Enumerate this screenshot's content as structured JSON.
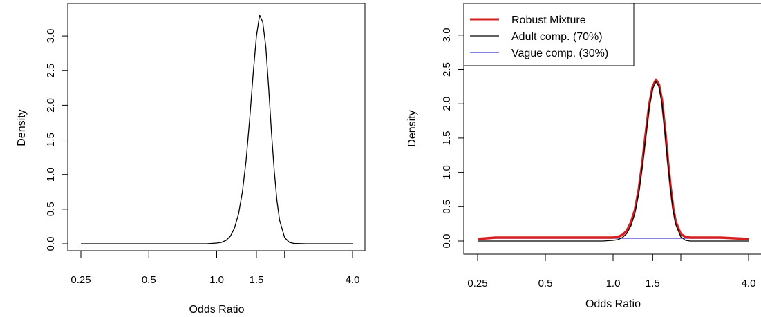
{
  "chart_data": [
    {
      "type": "line",
      "title": "",
      "xlabel": "Odds Ratio",
      "ylabel": "Density",
      "xscale": "log",
      "xlim": [
        0.25,
        4.0
      ],
      "ylim": [
        0,
        3.3
      ],
      "x_ticks": [
        0.25,
        0.5,
        1.0,
        1.5,
        2.0,
        4.0
      ],
      "x_tick_labels": [
        "0.25",
        "0.5",
        "1.0",
        "1.5",
        "",
        "4.0"
      ],
      "y_ticks": [
        0,
        0.5,
        1.0,
        1.5,
        2.0,
        2.5,
        3.0
      ],
      "y_tick_labels": [
        "0.0",
        "0.5",
        "1.0",
        "1.5",
        "2.0",
        "2.5",
        "3.0"
      ],
      "grid": false,
      "legend": null,
      "series": [
        {
          "color": "#000000",
          "x": [
            0.25,
            0.5,
            0.9,
            1.0,
            1.05,
            1.1,
            1.15,
            1.2,
            1.25,
            1.3,
            1.35,
            1.4,
            1.45,
            1.5,
            1.55,
            1.6,
            1.65,
            1.7,
            1.75,
            1.8,
            1.85,
            1.9,
            2.0,
            2.1,
            2.2,
            2.5,
            3.0,
            4.0
          ],
          "y": [
            0.0,
            0.0,
            0.0,
            0.01,
            0.02,
            0.05,
            0.11,
            0.23,
            0.43,
            0.75,
            1.2,
            1.8,
            2.45,
            3.0,
            3.3,
            3.2,
            2.85,
            2.25,
            1.6,
            1.05,
            0.62,
            0.34,
            0.09,
            0.02,
            0.005,
            0.0,
            0.0,
            0.0
          ]
        }
      ]
    },
    {
      "type": "line",
      "title": "",
      "xlabel": "Odds Ratio",
      "ylabel": "Density",
      "xscale": "log",
      "xlim": [
        0.25,
        4.0
      ],
      "ylim": [
        0,
        3.3
      ],
      "x_ticks": [
        0.25,
        0.5,
        1.0,
        1.5,
        2.0,
        4.0
      ],
      "x_tick_labels": [
        "0.25",
        "0.5",
        "1.0",
        "1.5",
        "",
        "4.0"
      ],
      "y_ticks": [
        0,
        0.5,
        1.0,
        1.5,
        2.0,
        2.5,
        3.0
      ],
      "y_tick_labels": [
        "0.0",
        "0.5",
        "1.0",
        "1.5",
        "2.0",
        "2.5",
        "3.0"
      ],
      "grid": false,
      "legend_position": "top-left",
      "series": [
        {
          "name": "Robust Mixture",
          "color": "#d62020",
          "x": [
            0.25,
            0.3,
            0.5,
            1.0,
            1.05,
            1.1,
            1.15,
            1.2,
            1.25,
            1.3,
            1.35,
            1.4,
            1.45,
            1.5,
            1.55,
            1.6,
            1.65,
            1.7,
            1.75,
            1.8,
            1.85,
            1.9,
            2.0,
            2.1,
            2.2,
            2.5,
            3.0,
            4.0
          ],
          "y": [
            0.03,
            0.05,
            0.05,
            0.05,
            0.06,
            0.09,
            0.15,
            0.27,
            0.45,
            0.75,
            1.15,
            1.6,
            2.0,
            2.25,
            2.35,
            2.28,
            2.05,
            1.65,
            1.2,
            0.8,
            0.48,
            0.28,
            0.1,
            0.06,
            0.05,
            0.05,
            0.05,
            0.03
          ]
        },
        {
          "name": "Adult comp. (70%)",
          "color": "#000000",
          "x": [
            0.25,
            0.5,
            0.9,
            1.0,
            1.05,
            1.1,
            1.15,
            1.2,
            1.25,
            1.3,
            1.35,
            1.4,
            1.45,
            1.5,
            1.55,
            1.6,
            1.65,
            1.7,
            1.75,
            1.8,
            1.85,
            1.9,
            2.0,
            2.1,
            2.2,
            2.5,
            3.0,
            4.0
          ],
          "y": [
            0.0,
            0.0,
            0.0,
            0.01,
            0.02,
            0.05,
            0.11,
            0.22,
            0.4,
            0.7,
            1.1,
            1.55,
            1.97,
            2.22,
            2.32,
            2.25,
            2.0,
            1.6,
            1.15,
            0.76,
            0.44,
            0.24,
            0.06,
            0.01,
            0.0,
            0.0,
            0.0,
            0.0
          ]
        },
        {
          "name": "Vague comp. (30%)",
          "color": "#3a3ad6",
          "x": [
            0.25,
            0.5,
            1.0,
            1.5,
            2.0,
            3.0,
            4.0
          ],
          "y": [
            0.04,
            0.04,
            0.04,
            0.04,
            0.04,
            0.04,
            0.04
          ]
        }
      ]
    }
  ]
}
